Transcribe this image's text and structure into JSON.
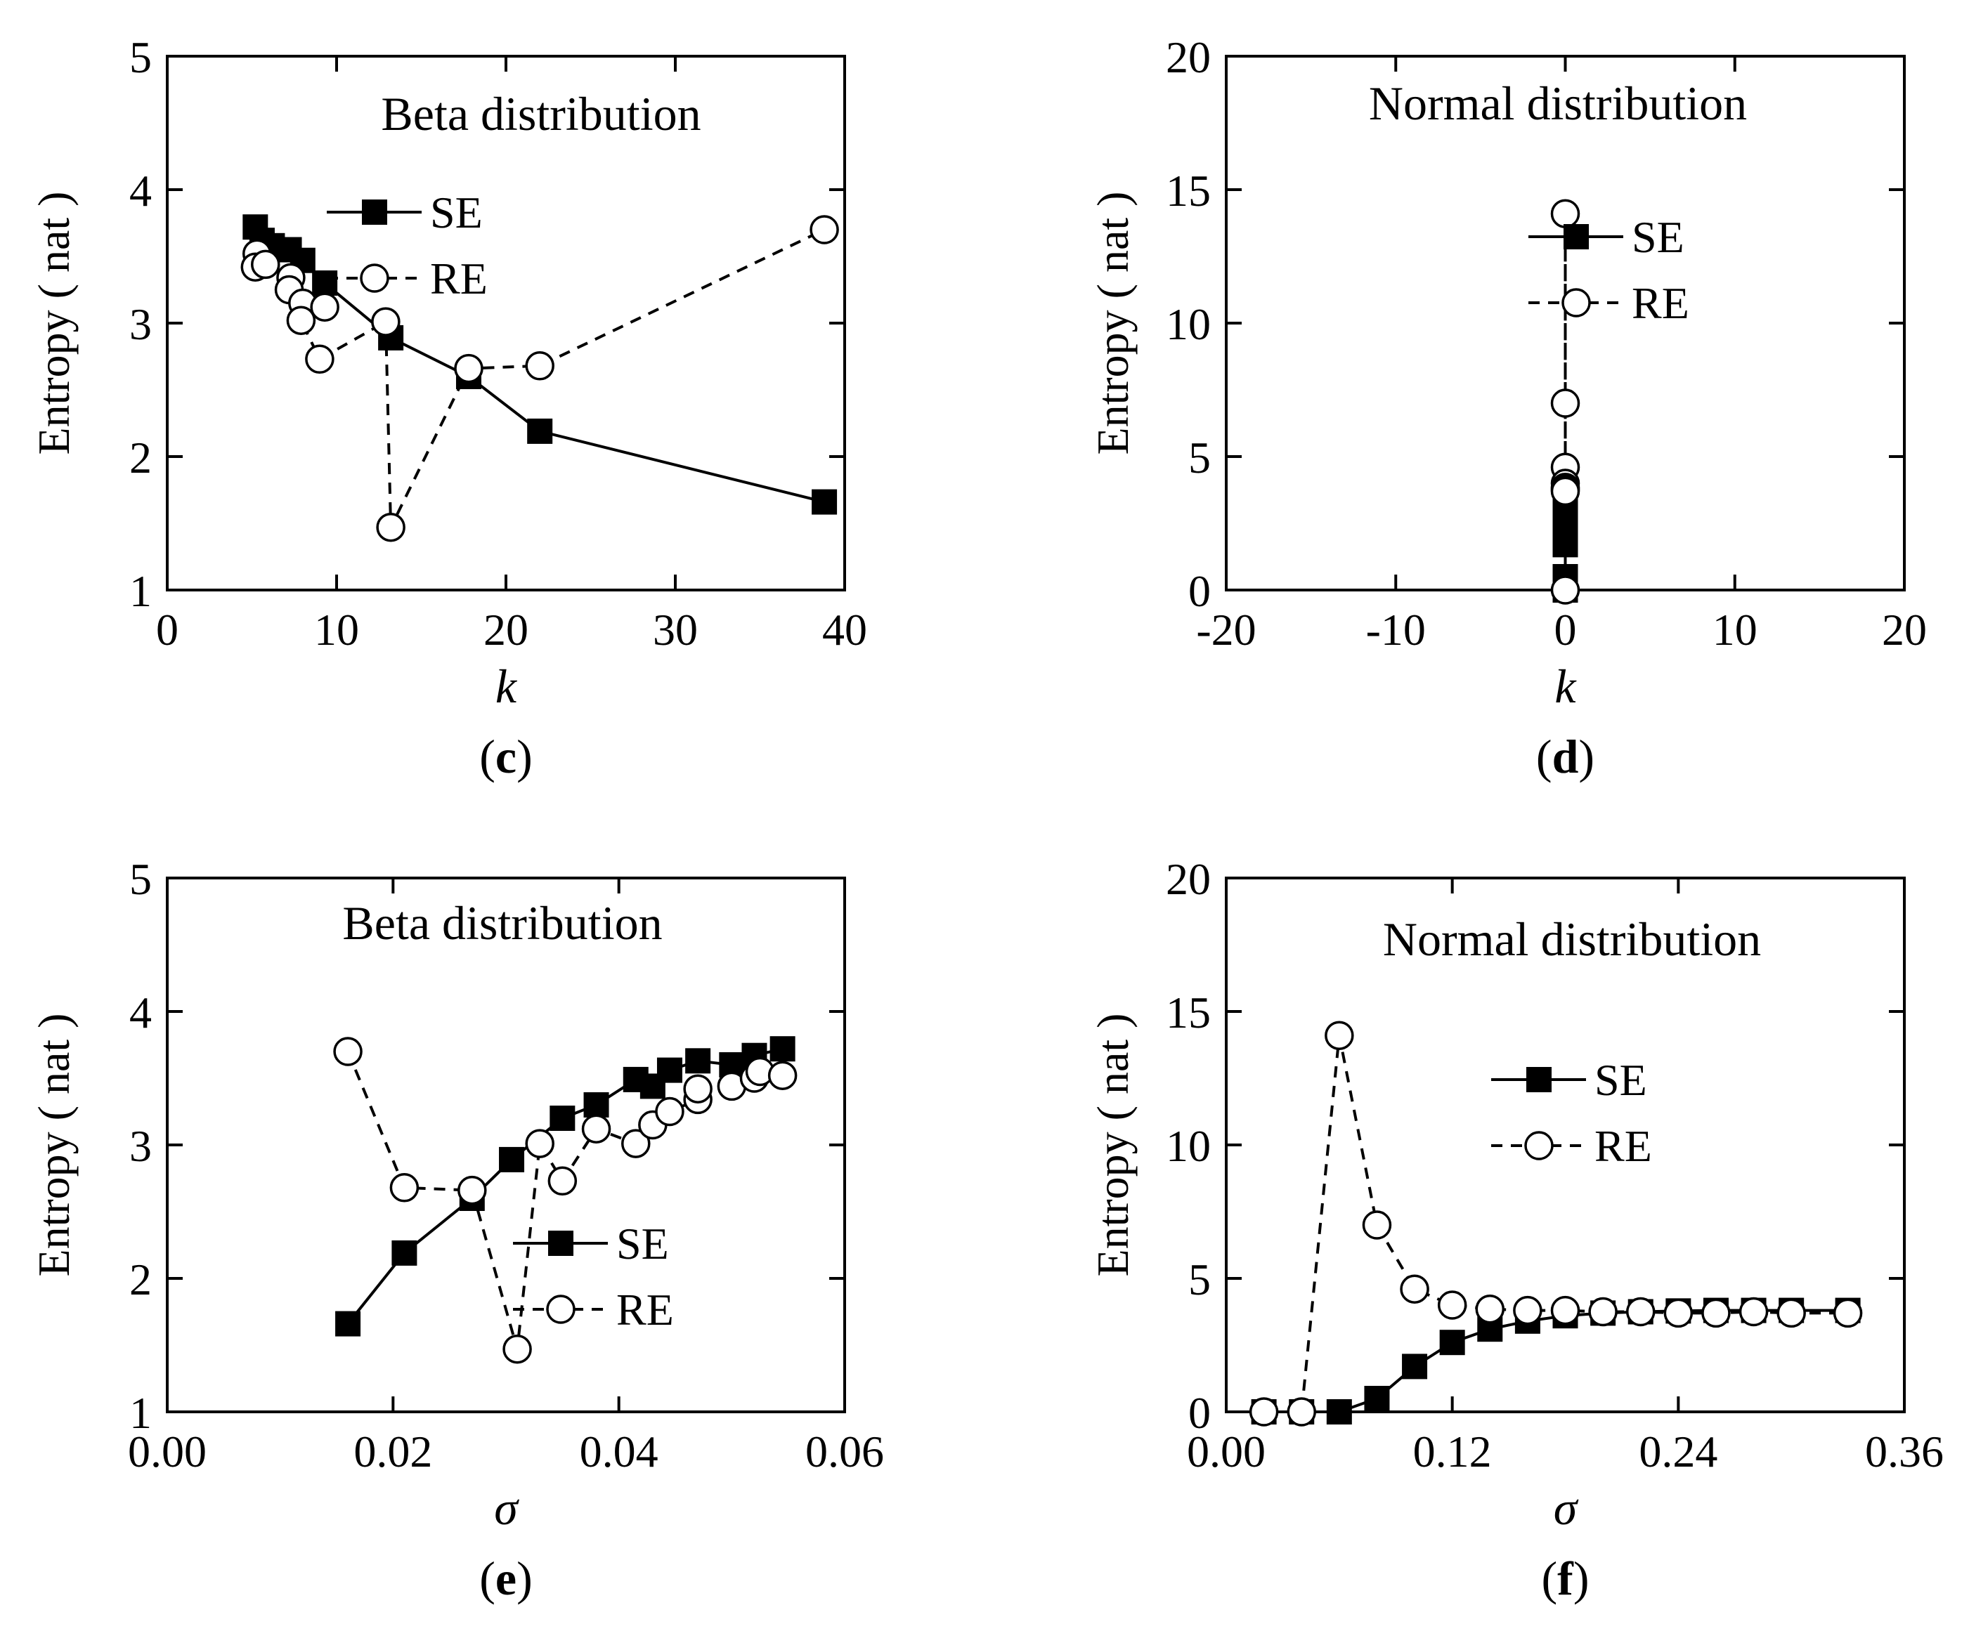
{
  "chart_data": [
    {
      "panel_label": "c",
      "type": "line",
      "title": "Beta distribution",
      "xlabel": "k",
      "ylabel": "Entropy ( nat )",
      "xlim": [
        0,
        40
      ],
      "ylim": [
        1,
        5
      ],
      "xticks": [
        "0",
        "10",
        "20",
        "30",
        "40"
      ],
      "yticks": [
        "1",
        "2",
        "3",
        "4",
        "5"
      ],
      "legend": {
        "entries": [
          "SE",
          "RE"
        ],
        "position": "top-right"
      },
      "series": [
        {
          "name": "SE",
          "line": "solid",
          "marker": "filled-square",
          "points": [
            [
              5.2,
              3.72
            ],
            [
              5.6,
              3.62
            ],
            [
              6.2,
              3.58
            ],
            [
              7.2,
              3.55
            ],
            [
              8.0,
              3.47
            ],
            [
              9.3,
              3.3
            ],
            [
              13.2,
              2.89
            ],
            [
              17.8,
              2.6
            ],
            [
              22.0,
              2.19
            ],
            [
              38.8,
              1.66
            ]
          ]
        },
        {
          "name": "RE",
          "line": "dashed",
          "marker": "open-circle",
          "points": [
            [
              5.3,
              3.52
            ],
            [
              5.2,
              3.42
            ],
            [
              5.8,
              3.44
            ],
            [
              7.3,
              3.34
            ],
            [
              7.2,
              3.25
            ],
            [
              8.0,
              3.15
            ],
            [
              9.3,
              3.12
            ],
            [
              7.9,
              3.02
            ],
            [
              9.0,
              2.73
            ],
            [
              12.9,
              3.01
            ],
            [
              13.2,
              1.47
            ],
            [
              17.8,
              2.66
            ],
            [
              22.0,
              2.68
            ],
            [
              38.8,
              3.7
            ]
          ]
        }
      ]
    },
    {
      "panel_label": "d",
      "type": "line",
      "title": "Normal distribution",
      "xlabel": "k",
      "ylabel": "Entropy ( nat )",
      "xlim": [
        -20,
        20
      ],
      "ylim": [
        0,
        20
      ],
      "xticks": [
        "-20",
        "-10",
        "0",
        "10",
        "20"
      ],
      "yticks": [
        "0",
        "5",
        "10",
        "15",
        "20"
      ],
      "legend": {
        "entries": [
          "SE",
          "RE"
        ],
        "position": "top-right"
      },
      "series": [
        {
          "name": "SE",
          "line": "solid",
          "marker": "filled-square",
          "points": [
            [
              0,
              0.0
            ],
            [
              0,
              0.5
            ],
            [
              0,
              1.7
            ],
            [
              0,
              2.6
            ],
            [
              0,
              3.1
            ],
            [
              0,
              3.4
            ],
            [
              0,
              3.6
            ],
            [
              0,
              3.7
            ],
            [
              0,
              3.75
            ],
            [
              0,
              3.78
            ],
            [
              0,
              3.8
            ]
          ]
        },
        {
          "name": "RE",
          "line": "dashed",
          "marker": "open-circle",
          "points": [
            [
              0,
              0.0
            ],
            [
              0,
              14.1
            ],
            [
              0,
              7.0
            ],
            [
              0,
              4.6
            ],
            [
              0,
              4.0
            ],
            [
              0,
              3.85
            ],
            [
              0,
              3.8
            ],
            [
              0,
              3.75
            ],
            [
              0,
              3.7
            ]
          ]
        }
      ]
    },
    {
      "panel_label": "e",
      "type": "line",
      "title": "Beta distribution",
      "xlabel": "σ",
      "ylabel": "Entropy ( nat )",
      "xlim": [
        0,
        0.06
      ],
      "ylim": [
        1,
        5
      ],
      "xticks": [
        "0.00",
        "0.02",
        "0.04",
        "0.06"
      ],
      "yticks": [
        "1",
        "2",
        "3",
        "4",
        "5"
      ],
      "legend": {
        "entries": [
          "SE",
          "RE"
        ],
        "position": "bottom-right"
      },
      "series": [
        {
          "name": "SE",
          "line": "solid",
          "marker": "filled-square",
          "points": [
            [
              0.016,
              1.66
            ],
            [
              0.021,
              2.19
            ],
            [
              0.027,
              2.6
            ],
            [
              0.0305,
              2.89
            ],
            [
              0.035,
              3.2
            ],
            [
              0.038,
              3.3
            ],
            [
              0.0415,
              3.49
            ],
            [
              0.043,
              3.44
            ],
            [
              0.0445,
              3.56
            ],
            [
              0.047,
              3.63
            ],
            [
              0.05,
              3.6
            ],
            [
              0.052,
              3.67
            ],
            [
              0.0545,
              3.72
            ]
          ]
        },
        {
          "name": "RE",
          "line": "dashed",
          "marker": "open-circle",
          "points": [
            [
              0.016,
              3.7
            ],
            [
              0.021,
              2.68
            ],
            [
              0.027,
              2.66
            ],
            [
              0.031,
              1.47
            ],
            [
              0.033,
              3.01
            ],
            [
              0.035,
              2.73
            ],
            [
              0.038,
              3.12
            ],
            [
              0.0415,
              3.01
            ],
            [
              0.043,
              3.15
            ],
            [
              0.0445,
              3.25
            ],
            [
              0.047,
              3.34
            ],
            [
              0.047,
              3.42
            ],
            [
              0.05,
              3.44
            ],
            [
              0.052,
              3.5
            ],
            [
              0.0525,
              3.55
            ],
            [
              0.0545,
              3.52
            ]
          ]
        }
      ]
    },
    {
      "panel_label": "f",
      "type": "line",
      "title": "Normal distribution",
      "xlabel": "σ",
      "ylabel": "Entropy ( nat )",
      "xlim": [
        0,
        0.36
      ],
      "ylim": [
        0,
        20
      ],
      "xticks": [
        "0.00",
        "0.12",
        "0.24",
        "0.36"
      ],
      "yticks": [
        "0",
        "5",
        "10",
        "15",
        "20"
      ],
      "legend": {
        "entries": [
          "SE",
          "RE"
        ],
        "position": "top-right"
      },
      "series": [
        {
          "name": "SE",
          "line": "solid",
          "marker": "filled-square",
          "points": [
            [
              0.02,
              0.0
            ],
            [
              0.04,
              0.0
            ],
            [
              0.06,
              0.0
            ],
            [
              0.08,
              0.5
            ],
            [
              0.1,
              1.7
            ],
            [
              0.12,
              2.6
            ],
            [
              0.14,
              3.1
            ],
            [
              0.16,
              3.4
            ],
            [
              0.18,
              3.6
            ],
            [
              0.2,
              3.7
            ],
            [
              0.22,
              3.75
            ],
            [
              0.24,
              3.78
            ],
            [
              0.26,
              3.8
            ],
            [
              0.28,
              3.8
            ],
            [
              0.3,
              3.8
            ],
            [
              0.33,
              3.8
            ]
          ]
        },
        {
          "name": "RE",
          "line": "dashed",
          "marker": "open-circle",
          "points": [
            [
              0.02,
              0.0
            ],
            [
              0.04,
              0.0
            ],
            [
              0.06,
              14.1
            ],
            [
              0.08,
              7.0
            ],
            [
              0.1,
              4.6
            ],
            [
              0.12,
              4.0
            ],
            [
              0.14,
              3.85
            ],
            [
              0.16,
              3.8
            ],
            [
              0.18,
              3.8
            ],
            [
              0.2,
              3.75
            ],
            [
              0.22,
              3.75
            ],
            [
              0.24,
              3.7
            ],
            [
              0.26,
              3.7
            ],
            [
              0.28,
              3.75
            ],
            [
              0.3,
              3.7
            ],
            [
              0.33,
              3.7
            ]
          ]
        }
      ]
    }
  ]
}
